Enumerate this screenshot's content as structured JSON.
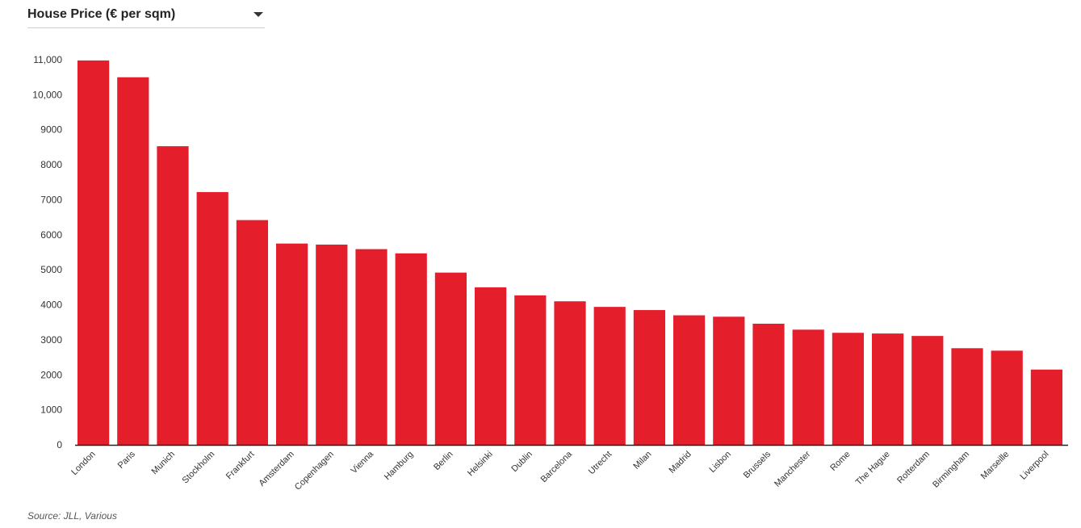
{
  "selector": {
    "label": "House Price (€ per sqm)"
  },
  "source": "Source: JLL, Various",
  "colors": {
    "bar": "#e41e2b",
    "axis": "#222222",
    "text": "#333333"
  },
  "chart_data": {
    "type": "bar",
    "title": "",
    "xlabel": "",
    "ylabel": "",
    "ylim": [
      0,
      11000
    ],
    "yticks": [
      0,
      1000,
      2000,
      3000,
      4000,
      5000,
      6000,
      7000,
      8000,
      9000,
      10000,
      11000
    ],
    "ytick_labels": [
      "0",
      "1000",
      "2000",
      "3000",
      "4000",
      "5000",
      "6000",
      "7000",
      "8000",
      "9000",
      "10,000",
      "11,000"
    ],
    "grid": false,
    "categories": [
      "London",
      "Paris",
      "Munich",
      "Stockholm",
      "Frankfurt",
      "Amsterdam",
      "Copenhagen",
      "Vienna",
      "Hamburg",
      "Berlin",
      "Helsinki",
      "Dublin",
      "Barcelona",
      "Utrecht",
      "Milan",
      "Madrid",
      "Lisbon",
      "Brussels",
      "Manchester",
      "Rome",
      "The Hague",
      "Rotterdam",
      "Birmingham",
      "Marseille",
      "Liverpool"
    ],
    "values": [
      10980,
      10500,
      8530,
      7220,
      6420,
      5750,
      5720,
      5590,
      5470,
      4920,
      4500,
      4270,
      4100,
      3940,
      3850,
      3700,
      3660,
      3460,
      3290,
      3200,
      3180,
      3110,
      2760,
      2690,
      2150
    ]
  }
}
